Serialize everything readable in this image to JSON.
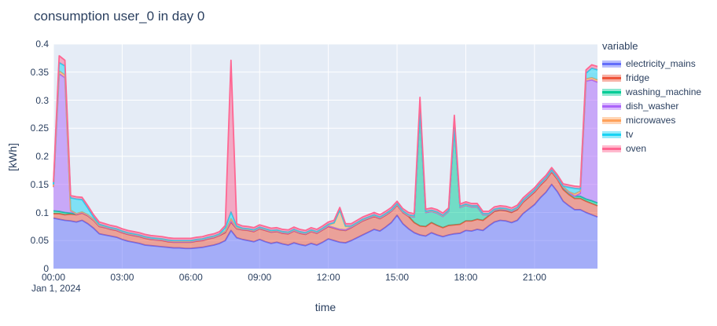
{
  "title": "consumption user_0 in day 0",
  "colors": {
    "text": "#2a3f5f",
    "plot_background": "#e5ecf6",
    "grid": "#ffffff"
  },
  "axes": {
    "x_label": "time",
    "y_label": "[kWh]",
    "x_date_label": "Jan 1, 2024",
    "x_ticks": [
      "00:00",
      "03:00",
      "06:00",
      "09:00",
      "12:00",
      "15:00",
      "18:00",
      "21:00"
    ],
    "y_ticks": [
      "0",
      "0.05",
      "0.1",
      "0.15",
      "0.2",
      "0.25",
      "0.3",
      "0.35",
      "0.4"
    ]
  },
  "legend": {
    "title": "variable"
  },
  "chart_data": {
    "type": "area",
    "stacked": true,
    "title": "consumption user_0 in day 0",
    "xlabel": "time",
    "ylabel": "[kWh]",
    "ylim": [
      0,
      0.4
    ],
    "x_range_hours": [
      0,
      23.75
    ],
    "grid": true,
    "legend_position": "right",
    "x": [
      "00:00",
      "00:15",
      "00:30",
      "00:45",
      "01:00",
      "01:15",
      "01:30",
      "01:45",
      "02:00",
      "02:15",
      "02:30",
      "02:45",
      "03:00",
      "03:15",
      "03:30",
      "03:45",
      "04:00",
      "04:15",
      "04:30",
      "04:45",
      "05:00",
      "05:15",
      "05:30",
      "05:45",
      "06:00",
      "06:15",
      "06:30",
      "06:45",
      "07:00",
      "07:15",
      "07:30",
      "07:45",
      "08:00",
      "08:15",
      "08:30",
      "08:45",
      "09:00",
      "09:15",
      "09:30",
      "09:45",
      "10:00",
      "10:15",
      "10:30",
      "10:45",
      "11:00",
      "11:15",
      "11:30",
      "11:45",
      "12:00",
      "12:15",
      "12:30",
      "12:45",
      "13:00",
      "13:15",
      "13:30",
      "13:45",
      "14:00",
      "14:15",
      "14:30",
      "14:45",
      "15:00",
      "15:15",
      "15:30",
      "15:45",
      "16:00",
      "16:15",
      "16:30",
      "16:45",
      "17:00",
      "17:15",
      "17:30",
      "17:45",
      "18:00",
      "18:15",
      "18:30",
      "18:45",
      "19:00",
      "19:15",
      "19:30",
      "19:45",
      "20:00",
      "20:15",
      "20:30",
      "20:45",
      "21:00",
      "21:15",
      "21:30",
      "21:45",
      "22:00",
      "22:15",
      "22:30",
      "22:45",
      "23:00",
      "23:15",
      "23:30",
      "23:45"
    ],
    "series": [
      {
        "name": "electricity_mains",
        "color": "#636EFA",
        "values": [
          0.09,
          0.088,
          0.086,
          0.085,
          0.083,
          0.086,
          0.08,
          0.072,
          0.062,
          0.06,
          0.058,
          0.056,
          0.052,
          0.049,
          0.047,
          0.045,
          0.042,
          0.041,
          0.04,
          0.039,
          0.038,
          0.037,
          0.037,
          0.036,
          0.036,
          0.037,
          0.038,
          0.04,
          0.042,
          0.045,
          0.05,
          0.068,
          0.055,
          0.052,
          0.05,
          0.048,
          0.052,
          0.048,
          0.045,
          0.047,
          0.044,
          0.042,
          0.046,
          0.043,
          0.041,
          0.045,
          0.042,
          0.047,
          0.053,
          0.05,
          0.047,
          0.046,
          0.05,
          0.055,
          0.06,
          0.065,
          0.07,
          0.067,
          0.074,
          0.082,
          0.095,
          0.08,
          0.071,
          0.064,
          0.06,
          0.058,
          0.064,
          0.06,
          0.057,
          0.06,
          0.062,
          0.063,
          0.068,
          0.067,
          0.07,
          0.068,
          0.076,
          0.083,
          0.086,
          0.085,
          0.082,
          0.086,
          0.098,
          0.106,
          0.114,
          0.126,
          0.136,
          0.15,
          0.137,
          0.12,
          0.112,
          0.105,
          0.105,
          0.1,
          0.096,
          0.092
        ]
      },
      {
        "name": "fridge",
        "color": "#EF553B",
        "values": [
          0.008,
          0.01,
          0.01,
          0.012,
          0.013,
          0.013,
          0.014,
          0.014,
          0.013,
          0.013,
          0.012,
          0.012,
          0.012,
          0.012,
          0.012,
          0.012,
          0.012,
          0.011,
          0.011,
          0.011,
          0.01,
          0.01,
          0.01,
          0.011,
          0.011,
          0.012,
          0.012,
          0.013,
          0.013,
          0.014,
          0.014,
          0.015,
          0.016,
          0.017,
          0.018,
          0.018,
          0.019,
          0.02,
          0.02,
          0.019,
          0.019,
          0.02,
          0.021,
          0.02,
          0.02,
          0.021,
          0.021,
          0.022,
          0.022,
          0.022,
          0.022,
          0.022,
          0.023,
          0.024,
          0.025,
          0.024,
          0.023,
          0.022,
          0.021,
          0.02,
          0.018,
          0.02,
          0.022,
          0.018,
          0.016,
          0.017,
          0.018,
          0.017,
          0.016,
          0.017,
          0.016,
          0.016,
          0.017,
          0.018,
          0.018,
          0.018,
          0.018,
          0.019,
          0.018,
          0.018,
          0.018,
          0.019,
          0.02,
          0.021,
          0.022,
          0.022,
          0.022,
          0.022,
          0.022,
          0.021,
          0.02,
          0.02,
          0.02,
          0.02,
          0.02,
          0.02
        ]
      },
      {
        "name": "washing_machine",
        "color": "#00CC96",
        "values": [
          0.005,
          0.004,
          0.004,
          0.002,
          0.001,
          0.001,
          0.001,
          0.001,
          0.001,
          0.001,
          0.001,
          0.001,
          0.001,
          0.001,
          0.001,
          0.001,
          0.001,
          0.001,
          0.001,
          0.001,
          0.001,
          0.001,
          0.001,
          0.001,
          0.001,
          0.001,
          0.001,
          0.001,
          0.001,
          0.001,
          0.002,
          0.002,
          0.001,
          0.001,
          0.001,
          0.001,
          0.001,
          0.001,
          0.001,
          0.001,
          0.001,
          0.001,
          0.001,
          0.001,
          0.001,
          0.001,
          0.001,
          0.001,
          0.001,
          0.001,
          0.001,
          0.001,
          0.001,
          0.001,
          0.001,
          0.001,
          0.001,
          0.001,
          0.001,
          0.001,
          0.001,
          0.001,
          0.001,
          0.01,
          0.205,
          0.025,
          0.02,
          0.022,
          0.02,
          0.025,
          0.175,
          0.03,
          0.028,
          0.025,
          0.022,
          0.01,
          0.002,
          0.002,
          0.002,
          0.002,
          0.002,
          0.002,
          0.002,
          0.002,
          0.002,
          0.002,
          0.002,
          0.002,
          0.002,
          0.004,
          0.004,
          0.004,
          0.004,
          0.004,
          0.005,
          0.005
        ]
      },
      {
        "name": "dish_washer",
        "color": "#AB63FA",
        "values": [
          0.042,
          0.245,
          0.24,
          0.004,
          0,
          0,
          0,
          0,
          0,
          0,
          0,
          0,
          0,
          0,
          0,
          0,
          0,
          0,
          0,
          0,
          0,
          0,
          0,
          0,
          0,
          0,
          0,
          0,
          0,
          0,
          0,
          0,
          0,
          0,
          0,
          0,
          0,
          0,
          0,
          0,
          0,
          0,
          0,
          0,
          0,
          0,
          0,
          0,
          0,
          0,
          0,
          0,
          0,
          0,
          0,
          0,
          0,
          0,
          0,
          0,
          0,
          0,
          0,
          0,
          0,
          0,
          0,
          0,
          0,
          0,
          0,
          0,
          0,
          0,
          0,
          0,
          0,
          0,
          0,
          0,
          0,
          0,
          0,
          0,
          0,
          0,
          0,
          0,
          0,
          0,
          0,
          0,
          0.005,
          0.21,
          0.215,
          0.215
        ]
      },
      {
        "name": "microwaves",
        "color": "#FFA15A",
        "values": [
          0.001,
          0.005,
          0.005,
          0.001,
          0.001,
          0.001,
          0.001,
          0.001,
          0.001,
          0.001,
          0.001,
          0.001,
          0.001,
          0.001,
          0.001,
          0.001,
          0.001,
          0.001,
          0.001,
          0.001,
          0.001,
          0.001,
          0.001,
          0.001,
          0.001,
          0.001,
          0.001,
          0.001,
          0.001,
          0.001,
          0.001,
          0.004,
          0.001,
          0.001,
          0.001,
          0.001,
          0.001,
          0.001,
          0.001,
          0.001,
          0.001,
          0.001,
          0.001,
          0.001,
          0.001,
          0.001,
          0.001,
          0.001,
          0.002,
          0.008,
          0.034,
          0.006,
          0.001,
          0.001,
          0.001,
          0.001,
          0.001,
          0.001,
          0.001,
          0.001,
          0.001,
          0.001,
          0.001,
          0.001,
          0.001,
          0.001,
          0.001,
          0.001,
          0.001,
          0.001,
          0.001,
          0.001,
          0.001,
          0.001,
          0.001,
          0.001,
          0.001,
          0.001,
          0.001,
          0.001,
          0.001,
          0.001,
          0.001,
          0.001,
          0.001,
          0.001,
          0.001,
          0.001,
          0.001,
          0.001,
          0.001,
          0.004,
          0.004,
          0.004,
          0.004,
          0.004
        ]
      },
      {
        "name": "tv",
        "color": "#19D3F3",
        "values": [
          0.004,
          0.015,
          0.016,
          0.022,
          0.026,
          0.022,
          0.012,
          0.004,
          0.002,
          0.001,
          0.001,
          0.001,
          0.001,
          0.001,
          0.001,
          0.001,
          0.001,
          0.001,
          0.001,
          0.001,
          0.001,
          0.001,
          0.001,
          0.001,
          0.001,
          0.001,
          0.001,
          0.001,
          0.001,
          0.001,
          0.006,
          0.012,
          0.003,
          0.001,
          0.001,
          0.001,
          0.001,
          0.001,
          0.001,
          0.001,
          0.001,
          0.001,
          0.001,
          0.001,
          0.001,
          0.001,
          0.001,
          0.001,
          0.001,
          0.001,
          0.001,
          0.001,
          0.001,
          0.001,
          0.001,
          0.001,
          0.001,
          0.001,
          0.001,
          0.001,
          0.001,
          0.001,
          0.001,
          0.001,
          0.001,
          0.001,
          0.001,
          0.001,
          0.001,
          0.001,
          0.001,
          0.001,
          0.001,
          0.001,
          0.001,
          0.001,
          0.001,
          0.001,
          0.001,
          0.001,
          0.001,
          0.001,
          0.001,
          0.001,
          0.001,
          0.001,
          0.001,
          0.001,
          0.001,
          0.001,
          0.008,
          0.01,
          0.004,
          0.01,
          0.017,
          0.018
        ]
      },
      {
        "name": "oven",
        "color": "#FF6692",
        "values": [
          0.004,
          0.012,
          0.01,
          0.004,
          0.004,
          0.004,
          0.004,
          0.004,
          0.004,
          0.004,
          0.004,
          0.004,
          0.004,
          0.004,
          0.004,
          0.004,
          0.004,
          0.004,
          0.004,
          0.004,
          0.004,
          0.004,
          0.004,
          0.004,
          0.004,
          0.004,
          0.004,
          0.004,
          0.004,
          0.004,
          0.004,
          0.27,
          0.004,
          0.004,
          0.004,
          0.004,
          0.004,
          0.004,
          0.004,
          0.004,
          0.004,
          0.004,
          0.004,
          0.004,
          0.004,
          0.004,
          0.004,
          0.004,
          0.004,
          0.004,
          0.004,
          0.004,
          0.004,
          0.004,
          0.004,
          0.004,
          0.004,
          0.004,
          0.004,
          0.004,
          0.004,
          0.004,
          0.004,
          0.004,
          0.022,
          0.004,
          0.004,
          0.004,
          0.004,
          0.004,
          0.018,
          0.004,
          0.004,
          0.004,
          0.004,
          0.004,
          0.004,
          0.004,
          0.004,
          0.004,
          0.004,
          0.004,
          0.004,
          0.004,
          0.004,
          0.004,
          0.004,
          0.004,
          0.004,
          0.004,
          0.004,
          0.004,
          0.004,
          0.006,
          0.006,
          0.006
        ]
      }
    ]
  }
}
